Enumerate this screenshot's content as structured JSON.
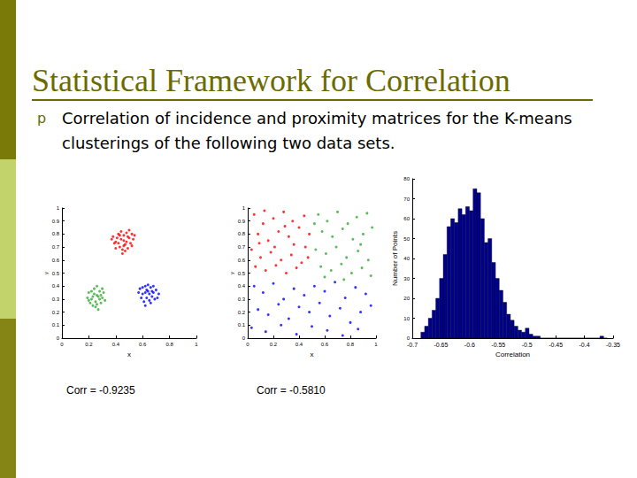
{
  "title": "Statistical Framework for Correlation",
  "bullet_marker": "p",
  "bullet": "Correlation of incidence and proximity matrices for the K-means clusterings of the following two data sets.",
  "chart_data": [
    {
      "type": "scatter",
      "xlabel": "x",
      "ylabel": "y",
      "annotation": "Corr = -0.9235",
      "xlim": [
        0,
        1
      ],
      "ylim": [
        0,
        1
      ],
      "xticks": [
        0,
        0.2,
        0.4,
        0.6,
        0.8,
        1
      ],
      "yticks": [
        0,
        0.1,
        0.2,
        0.3,
        0.4,
        0.5,
        0.6,
        0.7,
        0.8,
        0.9,
        1
      ],
      "grid": false,
      "marker": "circle",
      "series": [
        {
          "color": "#ff0000",
          "x": [
            0.38,
            0.4,
            0.42,
            0.44,
            0.46,
            0.48,
            0.5,
            0.52,
            0.47,
            0.43,
            0.45,
            0.49,
            0.51,
            0.41,
            0.39,
            0.44,
            0.5,
            0.53,
            0.46,
            0.48,
            0.42,
            0.45,
            0.47,
            0.4,
            0.52,
            0.37,
            0.49,
            0.43,
            0.54,
            0.46
          ],
          "values": [
            0.78,
            0.74,
            0.8,
            0.76,
            0.79,
            0.81,
            0.77,
            0.8,
            0.72,
            0.7,
            0.68,
            0.69,
            0.73,
            0.77,
            0.73,
            0.82,
            0.83,
            0.76,
            0.75,
            0.74,
            0.73,
            0.65,
            0.67,
            0.69,
            0.71,
            0.76,
            0.78,
            0.79,
            0.79,
            0.71
          ]
        },
        {
          "color": "#33aa33",
          "x": [
            0.2,
            0.22,
            0.24,
            0.26,
            0.28,
            0.3,
            0.25,
            0.23,
            0.27,
            0.21,
            0.29,
            0.31,
            0.24,
            0.19,
            0.26,
            0.28,
            0.32,
            0.22,
            0.25,
            0.3,
            0.27,
            0.23,
            0.26,
            0.29,
            0.2
          ],
          "values": [
            0.35,
            0.3,
            0.38,
            0.33,
            0.36,
            0.31,
            0.28,
            0.25,
            0.22,
            0.27,
            0.27,
            0.35,
            0.34,
            0.31,
            0.4,
            0.3,
            0.29,
            0.36,
            0.24,
            0.38,
            0.32,
            0.32,
            0.26,
            0.33,
            0.29
          ]
        },
        {
          "color": "#0000ff",
          "x": [
            0.58,
            0.6,
            0.62,
            0.64,
            0.66,
            0.68,
            0.7,
            0.63,
            0.61,
            0.65,
            0.67,
            0.69,
            0.72,
            0.59,
            0.62,
            0.66,
            0.64,
            0.6,
            0.68,
            0.71,
            0.57,
            0.63,
            0.65,
            0.67,
            0.62
          ],
          "values": [
            0.38,
            0.34,
            0.4,
            0.36,
            0.39,
            0.35,
            0.37,
            0.31,
            0.28,
            0.29,
            0.32,
            0.3,
            0.34,
            0.31,
            0.35,
            0.27,
            0.41,
            0.39,
            0.4,
            0.31,
            0.35,
            0.37,
            0.34,
            0.36,
            0.25
          ]
        }
      ]
    },
    {
      "type": "scatter",
      "xlabel": "x",
      "ylabel": "y",
      "annotation": "Corr = -0.5810",
      "xlim": [
        0,
        1
      ],
      "ylim": [
        0,
        1
      ],
      "xticks": [
        0,
        0.2,
        0.4,
        0.6,
        0.8,
        1
      ],
      "yticks": [
        0,
        0.1,
        0.2,
        0.3,
        0.4,
        0.5,
        0.6,
        0.7,
        0.8,
        0.9,
        1
      ],
      "grid": false,
      "marker": "circle",
      "series": [
        {
          "color": "#ff0000",
          "x": [
            0.05,
            0.12,
            0.2,
            0.28,
            0.35,
            0.08,
            0.16,
            0.24,
            0.32,
            0.4,
            0.45,
            0.03,
            0.1,
            0.18,
            0.26,
            0.34,
            0.42,
            0.06,
            0.14,
            0.22,
            0.3,
            0.38,
            0.47,
            0.44,
            0.13,
            0.36,
            0.21,
            0.09,
            0.29,
            0.48
          ],
          "values": [
            0.95,
            0.88,
            0.92,
            0.97,
            0.9,
            0.8,
            0.75,
            0.82,
            0.78,
            0.85,
            0.7,
            0.68,
            0.62,
            0.66,
            0.6,
            0.64,
            0.58,
            0.55,
            0.52,
            0.56,
            0.5,
            0.54,
            0.62,
            0.94,
            0.98,
            0.72,
            0.7,
            0.73,
            0.86,
            0.8
          ]
        },
        {
          "color": "#33aa33",
          "x": [
            0.55,
            0.62,
            0.7,
            0.78,
            0.85,
            0.93,
            0.58,
            0.66,
            0.74,
            0.82,
            0.9,
            0.97,
            0.53,
            0.61,
            0.69,
            0.77,
            0.86,
            0.94,
            0.57,
            0.65,
            0.73,
            0.81,
            0.89,
            0.96,
            0.6,
            0.75,
            0.88,
            0.52
          ],
          "values": [
            0.95,
            0.9,
            0.97,
            0.88,
            0.93,
            0.96,
            0.82,
            0.78,
            0.84,
            0.76,
            0.8,
            0.85,
            0.68,
            0.65,
            0.7,
            0.62,
            0.67,
            0.6,
            0.55,
            0.52,
            0.57,
            0.5,
            0.54,
            0.48,
            0.47,
            0.45,
            0.72,
            0.88
          ]
        },
        {
          "color": "#0000ff",
          "x": [
            0.05,
            0.12,
            0.2,
            0.28,
            0.36,
            0.44,
            0.52,
            0.6,
            0.68,
            0.76,
            0.84,
            0.92,
            0.08,
            0.16,
            0.24,
            0.32,
            0.4,
            0.48,
            0.56,
            0.64,
            0.72,
            0.8,
            0.88,
            0.96,
            0.03,
            0.14,
            0.26,
            0.38,
            0.5,
            0.62,
            0.74,
            0.86
          ],
          "values": [
            0.4,
            0.35,
            0.42,
            0.3,
            0.38,
            0.33,
            0.4,
            0.36,
            0.43,
            0.31,
            0.39,
            0.34,
            0.22,
            0.18,
            0.26,
            0.15,
            0.24,
            0.2,
            0.27,
            0.17,
            0.23,
            0.12,
            0.2,
            0.25,
            0.08,
            0.05,
            0.1,
            0.03,
            0.09,
            0.06,
            0.02,
            0.07
          ]
        }
      ]
    },
    {
      "type": "histogram",
      "xlabel": "Correlation",
      "ylabel": "Number of Points",
      "color": "#00008f",
      "grid": false,
      "xlim": [
        -0.7,
        -0.35
      ],
      "ylim": [
        0,
        80
      ],
      "xticks": [
        -0.7,
        -0.65,
        -0.6,
        -0.55,
        -0.5,
        -0.45,
        -0.4,
        -0.35
      ],
      "yticks": [
        0,
        10,
        20,
        30,
        40,
        50,
        60,
        70,
        80
      ],
      "bins": [
        -0.685,
        -0.6785,
        -0.672,
        -0.6655,
        -0.659,
        -0.6525,
        -0.646,
        -0.6395,
        -0.633,
        -0.6265,
        -0.62,
        -0.6135,
        -0.607,
        -0.6005,
        -0.594,
        -0.5875,
        -0.581,
        -0.5745,
        -0.568,
        -0.5615,
        -0.555,
        -0.5485,
        -0.542,
        -0.5355,
        -0.529,
        -0.5225,
        -0.516,
        -0.5095,
        -0.503,
        -0.4965,
        -0.49,
        -0.4835,
        -0.477,
        -0.4705,
        -0.464,
        -0.4575,
        -0.451,
        -0.4445,
        -0.438,
        -0.4315,
        -0.425,
        -0.4185,
        -0.412,
        -0.4055,
        -0.399,
        -0.3925,
        -0.386,
        -0.3795,
        -0.373,
        -0.3665,
        -0.36
      ],
      "values": [
        3,
        6,
        10,
        14,
        20,
        30,
        42,
        56,
        60,
        58,
        65,
        62,
        66,
        64,
        75,
        73,
        60,
        48,
        50,
        38,
        30,
        24,
        18,
        12,
        9,
        6,
        4,
        3,
        5,
        2,
        1,
        1,
        0,
        0,
        0,
        0,
        0,
        0,
        0,
        0,
        0,
        0,
        0,
        0,
        0,
        0,
        0,
        0,
        1,
        0
      ]
    }
  ]
}
